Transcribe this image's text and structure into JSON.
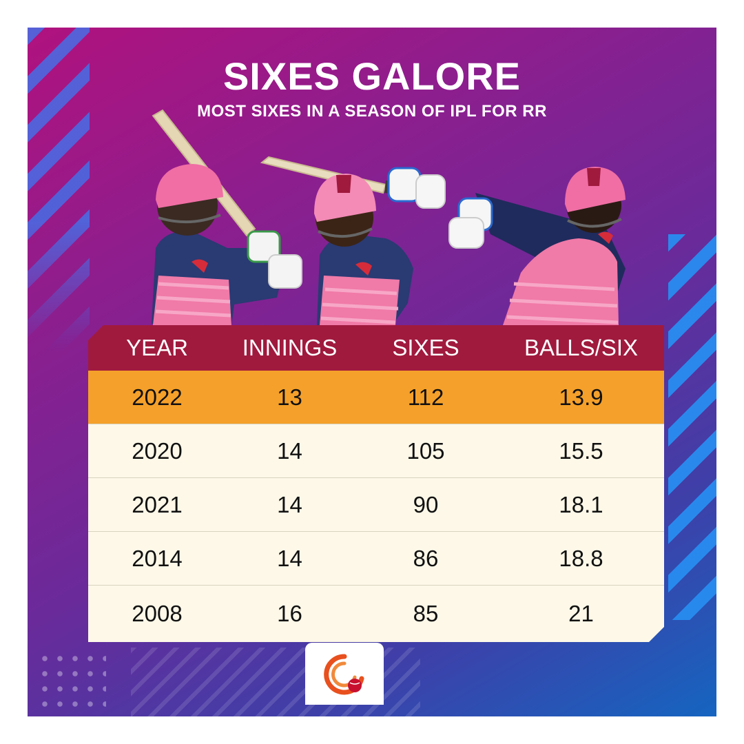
{
  "header": {
    "title": "SIXES GALORE",
    "subtitle": "MOST SIXES IN A SEASON OF IPL FOR RR"
  },
  "colors": {
    "header_bg": "#a01a3e",
    "highlight_row": "#f5a02a",
    "row_bg": "#fdf8e8",
    "jersey_pink": "#f07aa8",
    "navy": "#233366"
  },
  "icons": [
    "batter-1-icon",
    "batter-2-icon",
    "batter-3-icon",
    "brand-logo-icon"
  ],
  "chart_data": {
    "type": "table",
    "title": "SIXES GALORE",
    "subtitle": "MOST SIXES IN A SEASON OF IPL FOR RR",
    "columns": [
      "YEAR",
      "INNINGS",
      "SIXES",
      "BALLS/SIX"
    ],
    "rows": [
      [
        "2022",
        "13",
        "112",
        "13.9"
      ],
      [
        "2020",
        "14",
        "105",
        "15.5"
      ],
      [
        "2021",
        "14",
        "90",
        "18.1"
      ],
      [
        "2014",
        "14",
        "86",
        "18.8"
      ],
      [
        "2008",
        "16",
        "85",
        "21"
      ]
    ],
    "highlighted_row": 0
  }
}
